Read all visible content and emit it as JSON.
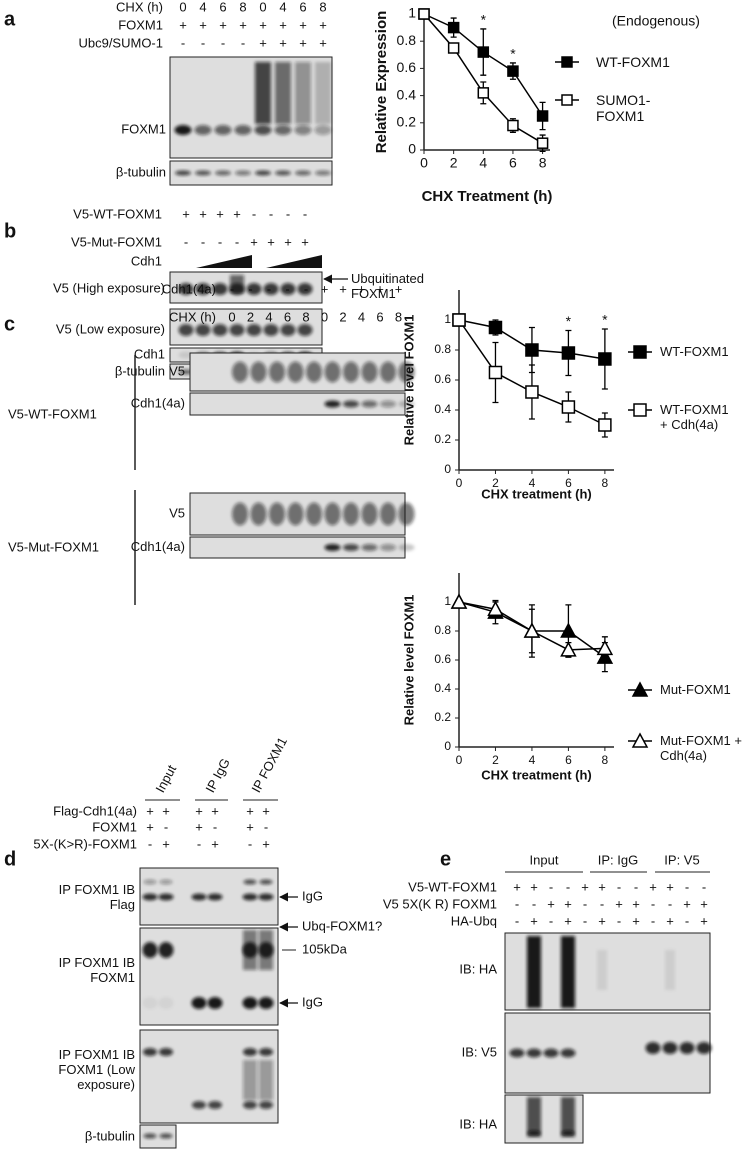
{
  "panel_a": {
    "letter": "a",
    "treatments": [
      {
        "label": "CHX (h)",
        "lanes": [
          "0",
          "4",
          "6",
          "8",
          "0",
          "4",
          "6",
          "8"
        ]
      },
      {
        "label": "FOXM1",
        "lanes": [
          "+",
          "+",
          "+",
          "+",
          "+",
          "+",
          "+",
          "+"
        ]
      },
      {
        "label": "Ubc9/SUMO-1",
        "lanes": [
          "-",
          "-",
          "-",
          "-",
          "+",
          "+",
          "+",
          "+"
        ]
      }
    ],
    "blots": [
      "FOXM1",
      "β-tubulin"
    ]
  },
  "chart_data": [
    {
      "type": "line",
      "y_label": "Relative Expression",
      "x_label": "CHX Treatment (h)",
      "x": [
        0,
        2,
        4,
        6,
        8
      ],
      "xlim": [
        0,
        8.5
      ],
      "xticks": [
        0,
        2,
        4,
        6,
        8
      ],
      "ylim": [
        0,
        1
      ],
      "yticks": [
        0,
        0.2,
        0.4,
        0.6,
        0.8,
        1
      ],
      "legend_title": "(Endogenous)",
      "series": [
        {
          "name": "WT-FOXM1",
          "color": "#000000",
          "marker": "square",
          "filled": true,
          "values": [
            1,
            0.9,
            0.72,
            0.58,
            0.25
          ],
          "errors": [
            0,
            0.07,
            0.17,
            0.06,
            0.1
          ]
        },
        {
          "name": "SUMO1-FOXM1",
          "color": "#000000",
          "marker": "square",
          "filled": false,
          "values": [
            1,
            0.75,
            0.42,
            0.18,
            0.05
          ],
          "errors": [
            0,
            0.02,
            0.08,
            0.05,
            0.06
          ]
        }
      ],
      "annotations": [
        {
          "text": "*",
          "x": 4
        },
        {
          "text": "*",
          "x": 6
        }
      ]
    },
    {
      "type": "line",
      "y_label": "Relative level FOXM1",
      "x_label": "CHX treatment (h)",
      "x": [
        0,
        2,
        4,
        6,
        8
      ],
      "xlim": [
        0,
        8.5
      ],
      "xticks": [
        0,
        2,
        4,
        6,
        8
      ],
      "ylim": [
        0,
        1.2
      ],
      "yticks": [
        0,
        0.2,
        0.4,
        0.6,
        0.8,
        1
      ],
      "series": [
        {
          "name": "WT-FOXM1",
          "color": "#000000",
          "marker": "square",
          "filled": true,
          "values": [
            1,
            0.95,
            0.8,
            0.78,
            0.74
          ],
          "errors": [
            0,
            0.05,
            0.15,
            0.15,
            0.2
          ]
        },
        {
          "name": "WT-FOXM1 + Cdh(4a)",
          "color": "#000000",
          "marker": "square",
          "filled": false,
          "values": [
            1,
            0.65,
            0.52,
            0.42,
            0.3
          ],
          "errors": [
            0,
            0.2,
            0.18,
            0.1,
            0.08
          ]
        }
      ],
      "annotations": [
        {
          "text": "*",
          "x": 6
        },
        {
          "text": "*",
          "x": 8
        }
      ]
    },
    {
      "type": "line",
      "y_label": "Relative level FOXM1",
      "x_label": "CHX treatment (h)",
      "x": [
        0,
        2,
        4,
        6,
        8
      ],
      "xlim": [
        0,
        8.5
      ],
      "xticks": [
        0,
        2,
        4,
        6,
        8
      ],
      "ylim": [
        0,
        1.2
      ],
      "yticks": [
        0,
        0.2,
        0.4,
        0.6,
        0.8,
        1
      ],
      "series": [
        {
          "name": "Mut-FOXM1",
          "color": "#000000",
          "marker": "triangle",
          "filled": true,
          "values": [
            1,
            0.93,
            0.8,
            0.8,
            0.62
          ],
          "errors": [
            0,
            0.08,
            0.15,
            0.18,
            0.1
          ]
        },
        {
          "name": "Mut-FOXM1 + Cdh(4a)",
          "color": "#000000",
          "marker": "triangle",
          "filled": false,
          "values": [
            1,
            0.95,
            0.8,
            0.67,
            0.68
          ],
          "errors": [
            0,
            0.05,
            0.18,
            0.05,
            0.08
          ]
        }
      ]
    }
  ],
  "panel_b": {
    "letter": "b",
    "treatments": [
      {
        "label": "V5-WT-FOXM1",
        "lanes": [
          "+",
          "+",
          "+",
          "+",
          "-",
          "-",
          "-",
          "-"
        ]
      },
      {
        "label": "V5-Mut-FOXM1",
        "lanes": [
          "-",
          "-",
          "-",
          "-",
          "+",
          "+",
          "+",
          "+"
        ]
      }
    ],
    "gradient_label": "Cdh1",
    "blots": [
      "V5 (High exposure)",
      "V5 (Low exposure)",
      "Cdh1",
      "β-tubulin"
    ],
    "arrow_label": "Ubquitinated FOXM1"
  },
  "panel_c": {
    "letter": "c",
    "treatments": [
      {
        "label": "Cdh1(4a)",
        "lanes": [
          "-",
          "-",
          "-",
          "-",
          "-",
          "+",
          "+",
          "+",
          "+",
          "+"
        ]
      },
      {
        "label": "CHX (h)",
        "lanes": [
          "0",
          "2",
          "4",
          "6",
          "8",
          "0",
          "2",
          "4",
          "6",
          "8"
        ]
      }
    ],
    "groups": [
      {
        "label": "V5-WT-FOXM1",
        "blots": [
          "V5",
          "Cdh1(4a)"
        ]
      },
      {
        "label": "V5-Mut-FOXM1",
        "blots": [
          "V5",
          "Cdh1(4a)"
        ]
      }
    ]
  },
  "panel_d": {
    "letter": "d",
    "headers": [
      "Input",
      "IP IgG",
      "IP FOXM1"
    ],
    "treatments": [
      {
        "label": "Flag-Cdh1(4a)",
        "lanes": [
          "+",
          "+",
          "+",
          "+",
          "+",
          "+"
        ]
      },
      {
        "label": "FOXM1",
        "lanes": [
          "+",
          "-",
          "+",
          "-",
          "+",
          "-"
        ]
      },
      {
        "label": "5X-(K>R)-FOXM1",
        "lanes": [
          "-",
          "+",
          "-",
          "+",
          "-",
          "+"
        ]
      }
    ],
    "blots": [
      "IP FOXM1 IB Flag",
      "IP FOXM1 IB FOXM1",
      "IP FOXM1 IB FOXM1 (Low exposure)",
      "β-tubulin"
    ],
    "markers": [
      "IgG",
      "Ubq-FOXM1?",
      "105kDa",
      "IgG"
    ]
  },
  "panel_e": {
    "letter": "e",
    "headers": [
      "Input",
      "IP: IgG",
      "IP: V5"
    ],
    "treatments": [
      {
        "label": "V5-WT-FOXM1",
        "lanes": [
          "+",
          "+",
          "-",
          "-",
          "+",
          "+",
          "-",
          "-",
          "+",
          "+",
          "-",
          "-"
        ]
      },
      {
        "label": "V5 5X(K R) FOXM1",
        "lanes": [
          "-",
          "-",
          "+",
          "+",
          "-",
          "-",
          "+",
          "+",
          "-",
          "-",
          "+",
          "+"
        ]
      },
      {
        "label": "HA-Ubq",
        "lanes": [
          "-",
          "+",
          "-",
          "+",
          "-",
          "+",
          "-",
          "+",
          "-",
          "+",
          "-",
          "+"
        ]
      }
    ],
    "blots": [
      "IB: HA",
      "IB: V5",
      "IB: HA"
    ]
  }
}
